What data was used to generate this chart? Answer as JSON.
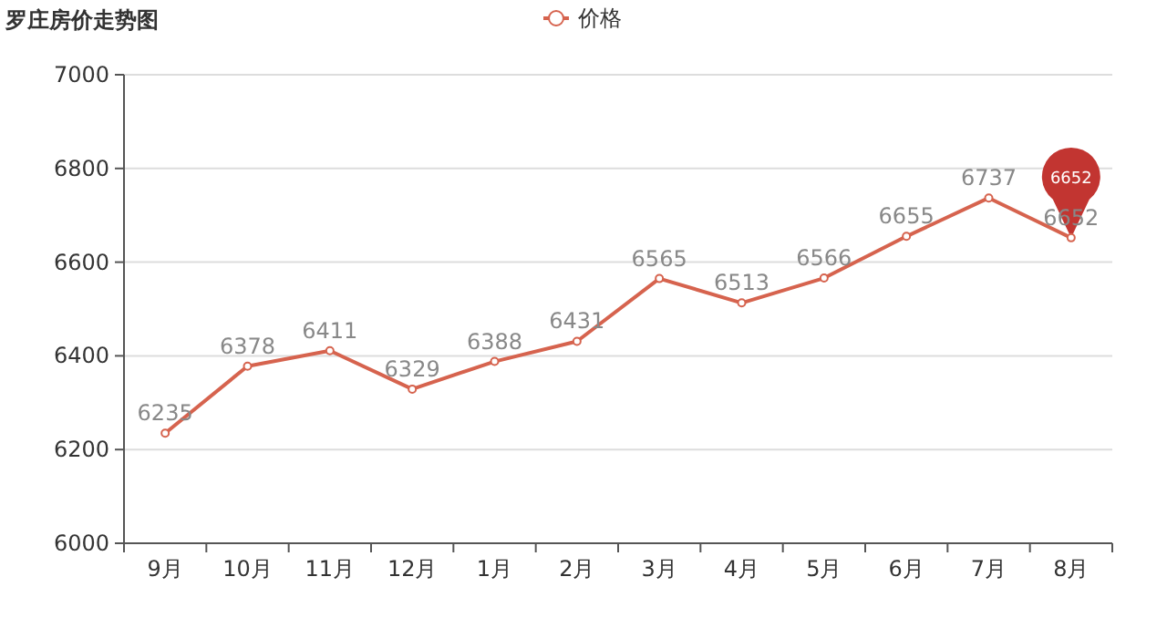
{
  "chart_data": {
    "type": "line",
    "title": "罗庄房价走势图",
    "categories": [
      "9月",
      "10月",
      "11月",
      "12月",
      "1月",
      "2月",
      "3月",
      "4月",
      "5月",
      "6月",
      "7月",
      "8月"
    ],
    "series": [
      {
        "name": "价格",
        "color": "#d6634e",
        "values": [
          6235,
          6378,
          6411,
          6329,
          6388,
          6431,
          6565,
          6513,
          6566,
          6655,
          6737,
          6652
        ]
      }
    ],
    "ylim": [
      6000,
      7000
    ],
    "yticks": [
      6000,
      6200,
      6400,
      6600,
      6800,
      7000
    ],
    "grid": "y",
    "legend": "top",
    "marker": "circle",
    "data_labels": true,
    "annotations": [
      "6652"
    ]
  }
}
